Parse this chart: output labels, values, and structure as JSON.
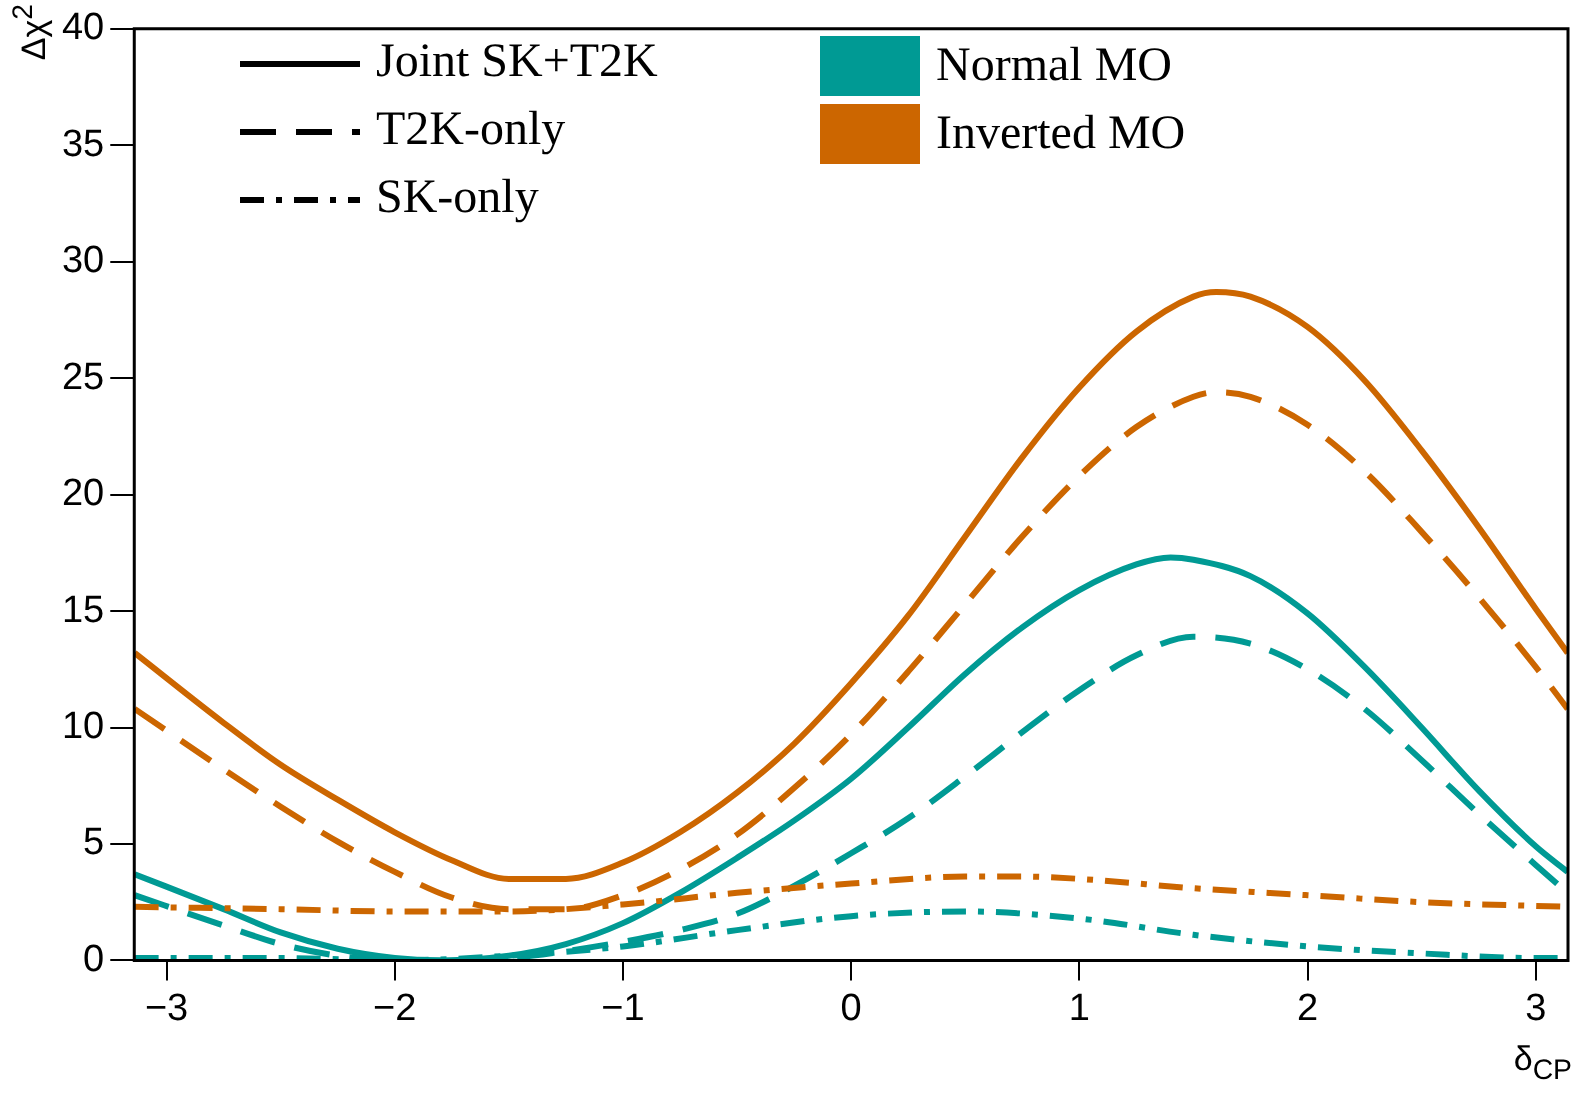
{
  "chart_data": {
    "type": "line",
    "xlabel": "δ$_{CP}$",
    "ylabel": "Δχ$^{2}$",
    "xlim": [
      -3.14159,
      3.14159
    ],
    "xticks": [
      -3,
      -2,
      -1,
      0,
      1,
      2,
      3
    ],
    "ylim": [
      0,
      40
    ],
    "yticks": [
      0,
      5,
      10,
      15,
      20,
      25,
      30,
      35,
      40
    ],
    "grid": false,
    "annotations": [
      "Joint SK+T2K",
      "T2K-only",
      "SK-only",
      "Normal MO",
      "Inverted MO"
    ],
    "series": [
      {
        "color": "#cc6600",
        "line_style": "solid",
        "x": [
          -3.14,
          -2.75,
          -2.5,
          -2.25,
          -2,
          -1.75,
          -1.5,
          -1.25,
          -1,
          -0.75,
          -0.5,
          -0.25,
          0,
          0.25,
          0.5,
          0.75,
          1,
          1.25,
          1.5,
          1.6,
          1.75,
          2,
          2.25,
          2.5,
          2.75,
          3,
          3.14
        ],
        "values": [
          13.2,
          10.2,
          8.4,
          6.9,
          5.5,
          4.3,
          3.5,
          3.5,
          4.2,
          5.5,
          7.2,
          9.3,
          11.9,
          14.8,
          18.2,
          21.6,
          24.6,
          27.0,
          28.5,
          28.7,
          28.5,
          27.2,
          24.9,
          21.9,
          18.6,
          15.1,
          13.2
        ]
      },
      {
        "color": "#cc6600",
        "line_style": "dashed",
        "x": [
          -3.14,
          -2.75,
          -2.5,
          -2.25,
          -2,
          -1.75,
          -1.5,
          -1.25,
          -1,
          -0.75,
          -0.5,
          -0.25,
          0,
          0.25,
          0.5,
          0.75,
          1,
          1.25,
          1.5,
          1.6,
          1.75,
          2,
          2.25,
          2.5,
          2.75,
          3,
          3.14
        ],
        "values": [
          10.8,
          8.2,
          6.6,
          5.1,
          3.8,
          2.7,
          2.2,
          2.2,
          2.8,
          3.9,
          5.4,
          7.4,
          9.7,
          12.4,
          15.3,
          18.2,
          20.8,
          22.9,
          24.2,
          24.4,
          24.2,
          23.0,
          21.0,
          18.4,
          15.6,
          12.6,
          10.8
        ]
      },
      {
        "color": "#cc6600",
        "line_style": "dashdot",
        "x": [
          -3.14,
          -2.5,
          -2,
          -1.5,
          -1,
          -0.5,
          0,
          0.5,
          0.75,
          1,
          1.5,
          2,
          2.5,
          3.14
        ],
        "values": [
          2.3,
          2.2,
          2.1,
          2.1,
          2.4,
          2.9,
          3.3,
          3.6,
          3.6,
          3.5,
          3.1,
          2.8,
          2.5,
          2.3
        ]
      },
      {
        "color": "#009a94",
        "line_style": "solid",
        "x": [
          -3.14,
          -2.75,
          -2.5,
          -2.25,
          -2,
          -1.8,
          -1.5,
          -1.25,
          -1,
          -0.75,
          -0.5,
          -0.25,
          0,
          0.25,
          0.5,
          0.75,
          1,
          1.25,
          1.4,
          1.5,
          1.75,
          2,
          2.25,
          2.5,
          2.75,
          3,
          3.14
        ],
        "values": [
          3.7,
          2.2,
          1.2,
          0.5,
          0.1,
          0,
          0.2,
          0.7,
          1.6,
          2.9,
          4.4,
          6.0,
          7.8,
          10.0,
          12.3,
          14.3,
          15.9,
          17.0,
          17.3,
          17.2,
          16.5,
          14.9,
          12.6,
          10.0,
          7.3,
          4.9,
          3.8
        ]
      },
      {
        "color": "#009a94",
        "line_style": "dashed",
        "x": [
          -3.14,
          -2.75,
          -2.5,
          -2.25,
          -2,
          -1.75,
          -1.5,
          -1.25,
          -1,
          -0.75,
          -0.5,
          -0.25,
          0,
          0.25,
          0.5,
          0.75,
          1,
          1.25,
          1.5,
          1.75,
          2,
          2.25,
          2.5,
          2.75,
          3,
          3.14
        ],
        "values": [
          2.8,
          1.5,
          0.7,
          0.2,
          0,
          0,
          0.1,
          0.4,
          0.8,
          1.3,
          2.0,
          3.2,
          4.6,
          6.1,
          7.9,
          9.8,
          11.6,
          13.1,
          13.9,
          13.6,
          12.5,
          10.8,
          8.6,
          6.3,
          4.1,
          2.9
        ]
      },
      {
        "color": "#009a94",
        "line_style": "dashdot",
        "x": [
          -3.14,
          -2.5,
          -2,
          -1.5,
          -1,
          -0.5,
          0,
          0.5,
          1,
          1.5,
          2,
          2.5,
          3,
          3.14
        ],
        "values": [
          0.1,
          0.1,
          0,
          0.2,
          0.6,
          1.3,
          1.9,
          2.1,
          1.8,
          1.1,
          0.6,
          0.3,
          0.1,
          0.1
        ]
      }
    ]
  }
}
